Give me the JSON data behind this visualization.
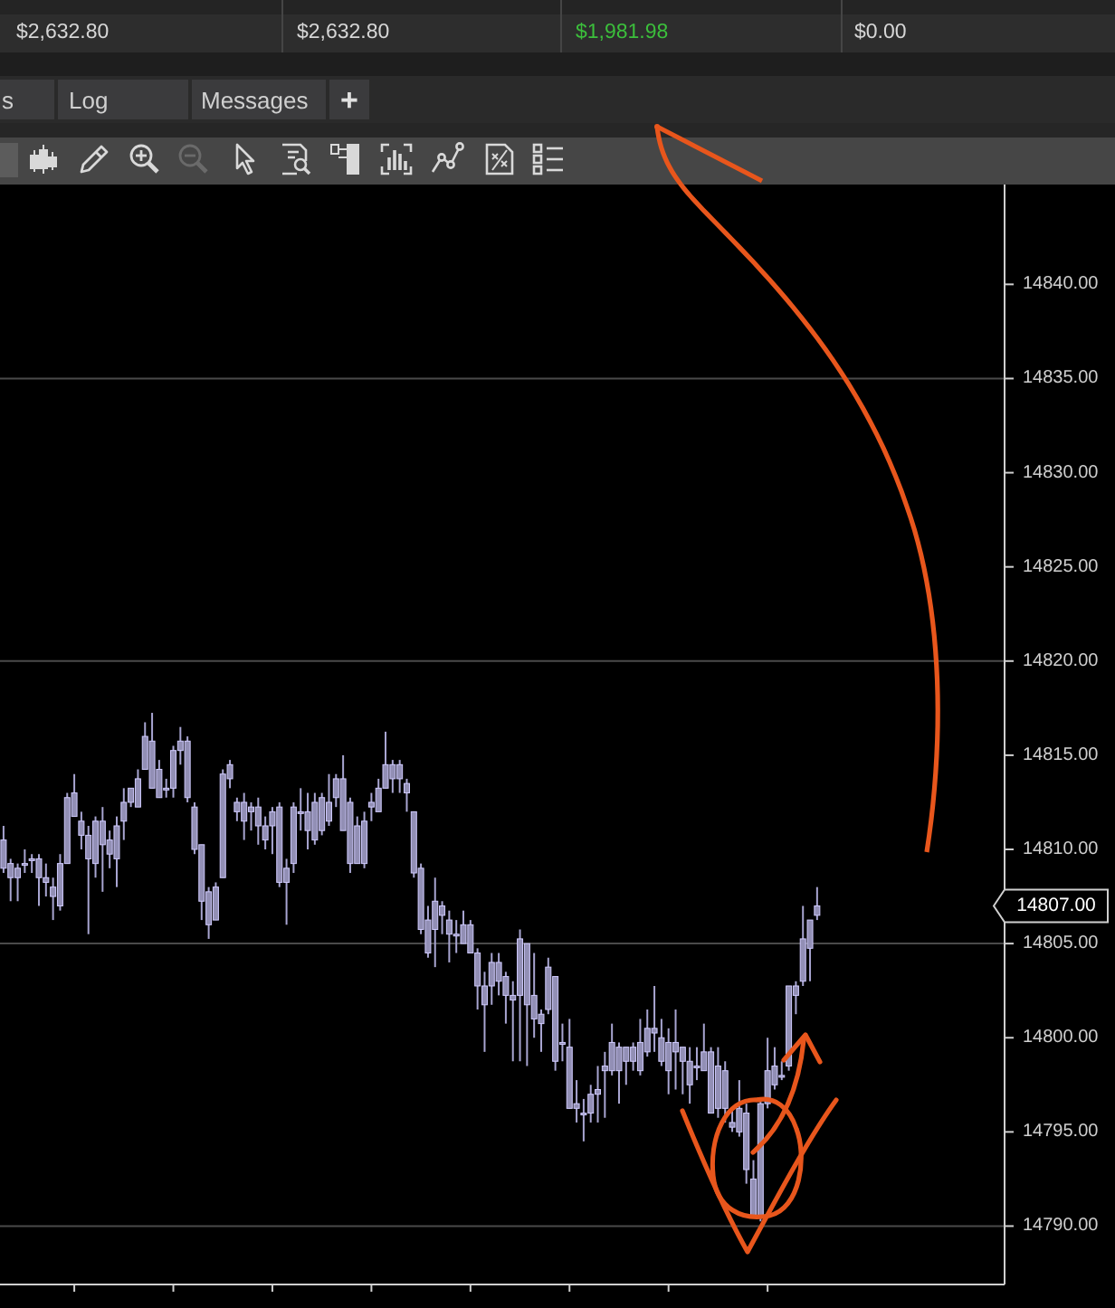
{
  "chart_data": {
    "type": "candlestick",
    "categories": [
      null,
      null,
      null,
      null,
      null,
      null,
      null,
      null,
      null,
      null,
      null,
      null,
      null,
      null,
      null,
      null,
      null,
      null,
      null,
      null,
      null,
      null,
      null,
      null,
      null,
      null,
      null,
      null,
      null,
      null,
      null,
      null,
      null,
      null,
      null,
      null,
      null,
      null,
      null,
      null,
      null,
      null,
      null,
      null,
      null,
      null,
      null,
      null,
      null,
      null,
      null,
      null,
      null,
      null,
      null,
      null,
      null,
      null,
      null,
      null,
      null,
      null,
      null,
      null,
      null,
      null,
      null,
      null,
      null,
      null,
      null,
      null,
      null,
      null,
      null,
      null,
      null,
      null,
      null,
      null,
      null,
      null,
      null,
      null,
      null,
      null,
      null,
      null,
      null,
      null,
      null,
      null,
      null,
      null,
      null,
      null,
      null,
      null,
      null,
      null,
      null,
      null,
      null,
      null,
      null,
      null,
      null,
      null,
      null,
      null,
      null,
      null,
      null,
      null,
      null,
      null,
      null,
      null,
      null,
      null,
      null,
      null,
      null,
      null,
      null,
      null,
      null,
      null,
      null,
      null,
      null,
      null,
      null,
      null,
      null,
      null,
      null,
      null,
      null,
      null,
      null,
      null
    ],
    "ohlc": [
      [
        14809,
        14811.25,
        14808.75,
        14810.5
      ],
      [
        14808.5,
        14809.5,
        14807.25,
        14809.25
      ],
      [
        14808.5,
        14809.25,
        14807.25,
        14809
      ],
      [
        14809.25,
        14810,
        14808.75,
        14809.25
      ],
      [
        14809.5,
        14809.75,
        14808.75,
        14809.5
      ],
      [
        14808.5,
        14809.75,
        14807,
        14809.5
      ],
      [
        14808.25,
        14809.25,
        14807.5,
        14808.5
      ],
      [
        14807.5,
        14808.5,
        14806.25,
        14808
      ],
      [
        14807,
        14809.75,
        14806.75,
        14809.25
      ],
      [
        14809.25,
        14813,
        14809.25,
        14812.75
      ],
      [
        14811.75,
        14814,
        14811.75,
        14813
      ],
      [
        14810.75,
        14812,
        14810,
        14811.5
      ],
      [
        14809.5,
        14811.25,
        14805.5,
        14810.75
      ],
      [
        14809.25,
        14811.75,
        14808.5,
        14811.5
      ],
      [
        14810.25,
        14812.25,
        14807.75,
        14811.5
      ],
      [
        14809.75,
        14811,
        14809,
        14810.5
      ],
      [
        14809.5,
        14811.75,
        14808,
        14811.25
      ],
      [
        14811.5,
        14813.25,
        14810.5,
        14812.5
      ],
      [
        14812.5,
        14813.25,
        14812.25,
        14813.25
      ],
      [
        14812.25,
        14814.25,
        14812.25,
        14813.75
      ],
      [
        14814.25,
        14816.75,
        14814.25,
        14816
      ],
      [
        14813.25,
        14817.25,
        14813.25,
        14815.75
      ],
      [
        14812.75,
        14814.75,
        14812.75,
        14814.25
      ],
      [
        14813.25,
        14813.75,
        14812.75,
        14813.25
      ],
      [
        14813.25,
        14815.5,
        14812.75,
        14815.25
      ],
      [
        14815.25,
        14816.5,
        14814.5,
        14815.75
      ],
      [
        14812.75,
        14816,
        14812.5,
        14815.75
      ],
      [
        14810,
        14812.5,
        14809.75,
        14812.25
      ],
      [
        14807.25,
        14810.25,
        14806.25,
        14810.25
      ],
      [
        14806,
        14808,
        14805.25,
        14807.75
      ],
      [
        14806.25,
        14808.25,
        14806.25,
        14808
      ],
      [
        14808.5,
        14814.25,
        14808.5,
        14814
      ],
      [
        14813.75,
        14814.75,
        14813.25,
        14814.5
      ],
      [
        14812,
        14812.75,
        14811.5,
        14812.5
      ],
      [
        14811.5,
        14813,
        14810.5,
        14812.5
      ],
      [
        14812,
        14812.5,
        14811,
        14812.25
      ],
      [
        14811.25,
        14812.75,
        14810.25,
        14812.25
      ],
      [
        14810.5,
        14811.75,
        14810,
        14811.25
      ],
      [
        14811.25,
        14812.25,
        14809.75,
        14812
      ],
      [
        14808.25,
        14812.5,
        14808,
        14812.25
      ],
      [
        14808.25,
        14809.5,
        14806,
        14809
      ],
      [
        14809.25,
        14812.5,
        14808.75,
        14812.25
      ],
      [
        14812,
        14813.25,
        14811,
        14812
      ],
      [
        14811,
        14813,
        14810,
        14812
      ],
      [
        14810.5,
        14813,
        14810.25,
        14812.5
      ],
      [
        14811,
        14813,
        14810.75,
        14812.75
      ],
      [
        14811.5,
        14814,
        14811.25,
        14812.5
      ],
      [
        14812.75,
        14814,
        14812.25,
        14813.75
      ],
      [
        14811,
        14815,
        14811,
        14813.75
      ],
      [
        14809.25,
        14812.75,
        14808.75,
        14812.5
      ],
      [
        14809.25,
        14811.75,
        14809.25,
        14811.25
      ],
      [
        14809.25,
        14812,
        14809,
        14811.5
      ],
      [
        14812.25,
        14813,
        14811.5,
        14812.5
      ],
      [
        14812,
        14813.75,
        14812,
        14813.25
      ],
      [
        14813.25,
        14816.25,
        14813.25,
        14814.5
      ],
      [
        14813.75,
        14814.75,
        14813,
        14814.5
      ],
      [
        14813.75,
        14814.75,
        14813,
        14814.5
      ],
      [
        14813,
        14813.75,
        14812,
        14813.5
      ],
      [
        14808.75,
        14812,
        14808.5,
        14812
      ],
      [
        14805.75,
        14809.25,
        14805.5,
        14809
      ],
      [
        14804.5,
        14807,
        14804.25,
        14806.25
      ],
      [
        14805.75,
        14808.5,
        14803.75,
        14807.25
      ],
      [
        14806.5,
        14807.25,
        14805.5,
        14807
      ],
      [
        14805.5,
        14806.75,
        14804,
        14806.25
      ],
      [
        14805.5,
        14806.25,
        14804.5,
        14805.5
      ],
      [
        14805,
        14806.75,
        14805,
        14806
      ],
      [
        14804.5,
        14806.25,
        14804.5,
        14806
      ],
      [
        14802.75,
        14804.75,
        14801.5,
        14804.5
      ],
      [
        14801.75,
        14803.5,
        14799.25,
        14802.75
      ],
      [
        14802.75,
        14804.5,
        14801.75,
        14804
      ],
      [
        14803,
        14804.5,
        14802.25,
        14804
      ],
      [
        14802.25,
        14803.5,
        14800.75,
        14803.25
      ],
      [
        14802,
        14803,
        14798.75,
        14802.25
      ],
      [
        14802.25,
        14805.75,
        14798.75,
        14805.25
      ],
      [
        14801.75,
        14805,
        14798.5,
        14805
      ],
      [
        14801,
        14804.5,
        14800,
        14802.25
      ],
      [
        14800.75,
        14801.5,
        14799.25,
        14801.25
      ],
      [
        14801.5,
        14804.25,
        14801.25,
        14803.75
      ],
      [
        14798.75,
        14803.25,
        14798.25,
        14803.25
      ],
      [
        14799.75,
        14800.75,
        14798.75,
        14799.75
      ],
      [
        14796.25,
        14801,
        14796.25,
        14799.5
      ],
      [
        14796.25,
        14797.75,
        14795.5,
        14796.5
      ],
      [
        14796,
        14796.75,
        14794.5,
        14796
      ],
      [
        14796,
        14797.5,
        14795.5,
        14797
      ],
      [
        14797,
        14798.5,
        14795.5,
        14797.25
      ],
      [
        14798.25,
        14799.25,
        14795.75,
        14798.5
      ],
      [
        14798.25,
        14800.75,
        14798,
        14799.75
      ],
      [
        14798.25,
        14799.75,
        14796.5,
        14799.5
      ],
      [
        14798.75,
        14799.5,
        14797.5,
        14799.5
      ],
      [
        14798.75,
        14799.75,
        14798.25,
        14799.5
      ],
      [
        14798.25,
        14801,
        14798,
        14799.75
      ],
      [
        14799.25,
        14801.5,
        14799,
        14800.5
      ],
      [
        14800.25,
        14802.75,
        14799.25,
        14800.5
      ],
      [
        14798.75,
        14801,
        14798.5,
        14800
      ],
      [
        14798.25,
        14800.5,
        14797,
        14799.75
      ],
      [
        14799.25,
        14801.5,
        14797.25,
        14799.75
      ],
      [
        14798.75,
        14799.5,
        14797,
        14799.5
      ],
      [
        14797.5,
        14799.5,
        14796.5,
        14798.75
      ],
      [
        14798.5,
        14799.5,
        14797.75,
        14798.5
      ],
      [
        14798.25,
        14800.75,
        14798.25,
        14799.25
      ],
      [
        14796,
        14799.5,
        14796,
        14799.25
      ],
      [
        14796.25,
        14799.5,
        14795.75,
        14798.5
      ],
      [
        14796.25,
        14798.75,
        14795.5,
        14798.25
      ],
      [
        14795.25,
        14796.25,
        14795,
        14795.5
      ],
      [
        14795,
        14797.75,
        14794.75,
        14796.25
      ],
      [
        14793,
        14796.5,
        14792.25,
        14796
      ],
      [
        14790.5,
        14793.5,
        14790.5,
        14792.5
      ],
      [
        14790.5,
        14796.75,
        14790.25,
        14796.5
      ],
      [
        14796.5,
        14800,
        14796.25,
        14798.25
      ],
      [
        14797.5,
        14799.5,
        14797.25,
        14798.5
      ],
      [
        14798,
        14798.75,
        14797.75,
        14798
      ],
      [
        14798.5,
        14802.75,
        14798.25,
        14802.75
      ],
      [
        14802.25,
        14803,
        14801.25,
        14802.75
      ],
      [
        14803,
        14807,
        14802.75,
        14805.25
      ],
      [
        14804.75,
        14806.25,
        14803,
        14806.25
      ],
      [
        14806.5,
        14808,
        14806.25,
        14807
      ],
      null,
      null,
      null,
      null,
      null,
      null,
      null,
      null,
      null,
      null,
      null,
      null,
      null,
      null,
      null,
      null,
      null,
      null,
      null,
      null,
      null,
      null,
      null,
      null,
      null,
      null
    ],
    "color": "#928fb5",
    "ylim": [
      14786.9,
      14845.3
    ],
    "yticks": [
      {
        "value": 14790,
        "label": "14790.00"
      },
      {
        "value": 14795,
        "label": "14795.00"
      },
      {
        "value": 14800,
        "label": "14800.00"
      },
      {
        "value": 14805,
        "label": "14805.00"
      },
      {
        "value": 14810,
        "label": "14810.00"
      },
      {
        "value": 14815,
        "label": "14815.00"
      },
      {
        "value": 14820,
        "label": "14820.00"
      },
      {
        "value": 14825,
        "label": "14825.00"
      },
      {
        "value": 14830,
        "label": "14830.00"
      },
      {
        "value": 14835,
        "label": "14835.00"
      },
      {
        "value": 14840,
        "label": "14840.00"
      }
    ],
    "tick_labels": "y",
    "ref_lines": [
      {
        "axis": "y",
        "value": 14790,
        "color": "#4a4a4a"
      },
      {
        "axis": "y",
        "value": 14805,
        "color": "#4a4a4a"
      },
      {
        "axis": "y",
        "value": 14820,
        "color": "#4a4a4a"
      },
      {
        "axis": "y",
        "value": 14835,
        "color": "#4a4a4a"
      }
    ],
    "annotations": [
      "$2,632.80",
      "$2,632.80",
      "$1,981.98",
      "$0.00",
      "s",
      "Log",
      "Messages",
      "+",
      "14807.00"
    ]
  }
}
